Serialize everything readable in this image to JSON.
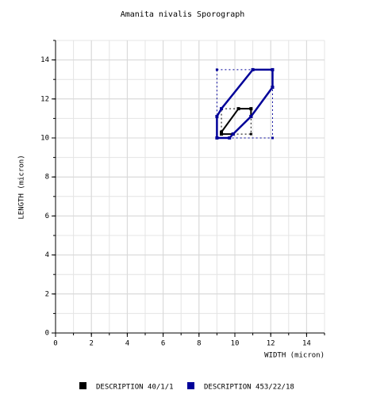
{
  "chart_data": {
    "type": "sporograph",
    "title": "Amanita nivalis Sporograph",
    "x_label": "WIDTH (micron)",
    "y_label": "LENGTH (micron)",
    "xlim": [
      0,
      15
    ],
    "ylim": [
      0,
      15
    ],
    "xticks": [
      0,
      2,
      4,
      6,
      8,
      10,
      12,
      14
    ],
    "yticks": [
      0,
      2,
      4,
      6,
      8,
      10,
      12,
      14
    ],
    "grid": true,
    "series": [
      {
        "name": "DESCRIPTION 40/1/1",
        "color": "#000000",
        "x": [
          9.25,
          10.2,
          10.9,
          10.9,
          9.9,
          9.25
        ],
        "y": [
          10.3,
          11.5,
          11.5,
          11.1,
          10.2,
          10.2
        ]
      },
      {
        "name": "DESCRIPTION 453/22/18",
        "color": "#000099",
        "x": [
          9.0,
          9.0,
          9.25,
          11.0,
          12.1,
          12.1,
          10.9,
          9.9,
          9.7
        ],
        "y": [
          10.0,
          11.1,
          11.5,
          13.5,
          13.5,
          12.6,
          11.1,
          10.2,
          10.0
        ]
      }
    ]
  }
}
